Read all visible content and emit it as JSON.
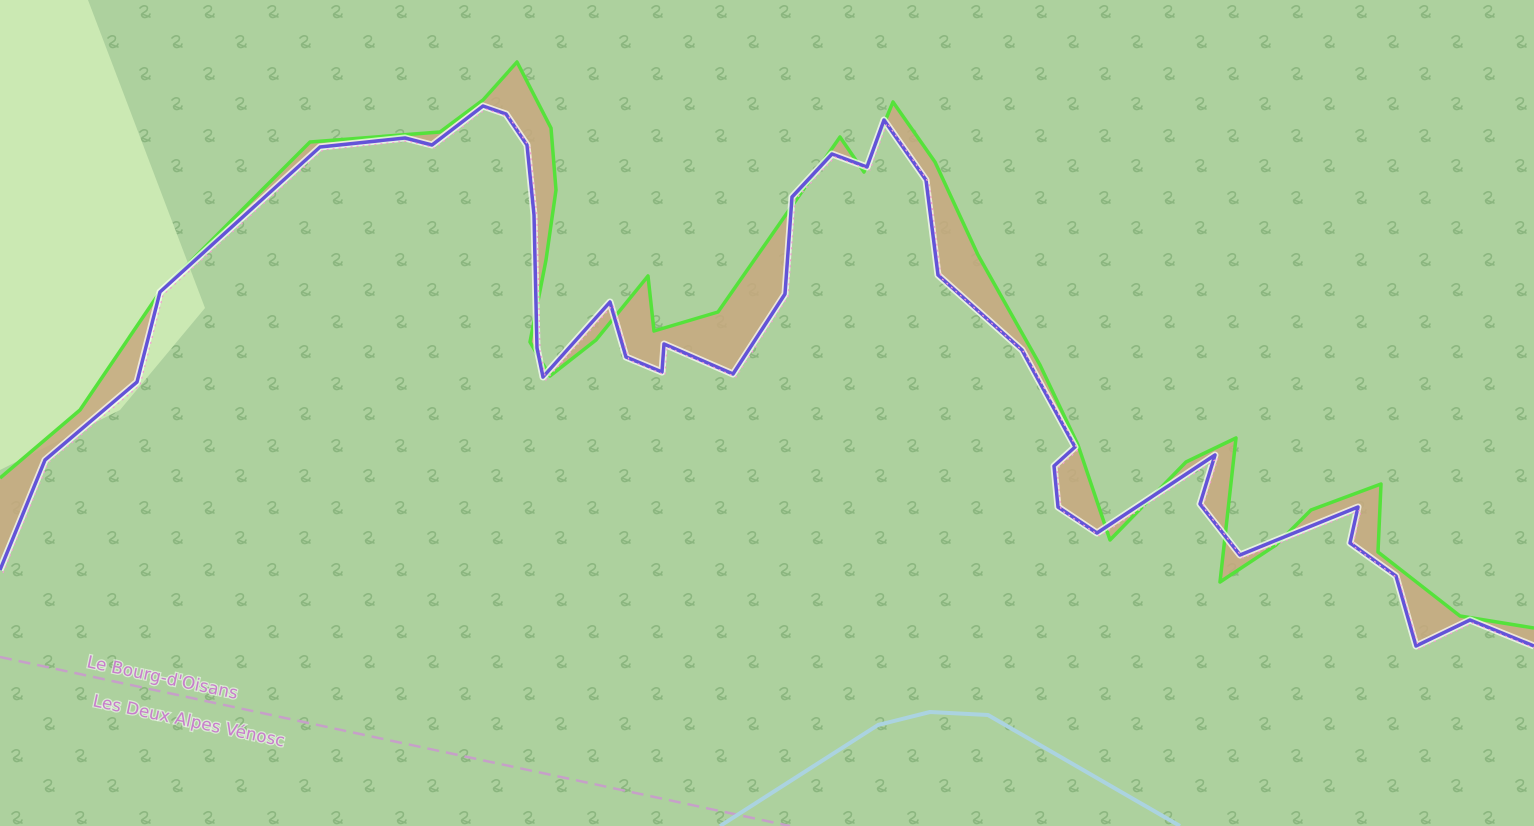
{
  "map": {
    "colors": {
      "forest": "#add19e",
      "scrub": "#cbe9b3",
      "difference_fill": "#c8a87f",
      "boundary_a": "#55e23b",
      "boundary_b": "#6353d8",
      "admin_line": "#c6a0c8",
      "stream": "#abd3e0",
      "label": "#c87dcc"
    },
    "labels": {
      "commune_north": "Le Bourg-d'Oisans",
      "commune_south": "Les Deux Alpes  Vénosc"
    },
    "icons": {
      "forest_pattern": "leaf-symbol-icon"
    }
  }
}
